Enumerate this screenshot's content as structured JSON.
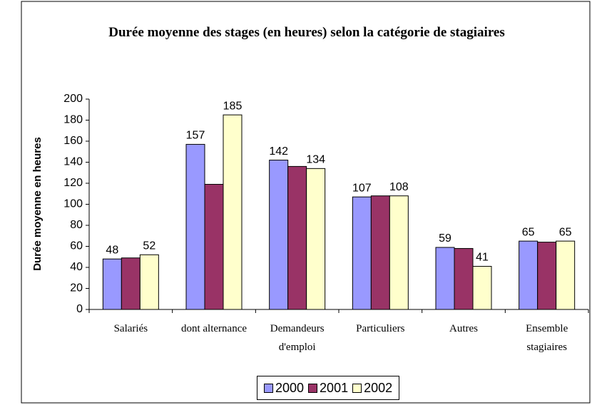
{
  "chart_data": {
    "type": "bar",
    "title": "Durée moyenne des stages (en heures) selon la catégorie de stagiaires",
    "y_label": "Durée moyenne en heures",
    "categories": [
      "Salariés",
      "dont alternance",
      "Demandeurs d'emploi",
      "Particuliers",
      "Autres",
      "Ensemble stagiaires"
    ],
    "series": [
      {
        "name": "2000",
        "color": "#9999ff",
        "show_labels": true,
        "values": [
          48,
          157,
          142,
          107,
          59,
          65
        ]
      },
      {
        "name": "2001",
        "color": "#993366",
        "show_labels": false,
        "values": [
          49,
          119,
          136,
          108,
          58,
          64
        ]
      },
      {
        "name": "2002",
        "color": "#ffffcc",
        "show_labels": true,
        "values": [
          52,
          185,
          134,
          108,
          41,
          65
        ]
      }
    ],
    "ylim": [
      0,
      200
    ],
    "yticks": [
      0,
      20,
      40,
      60,
      80,
      100,
      120,
      140,
      160,
      180,
      200
    ],
    "grid": false,
    "legend": "bottom"
  }
}
